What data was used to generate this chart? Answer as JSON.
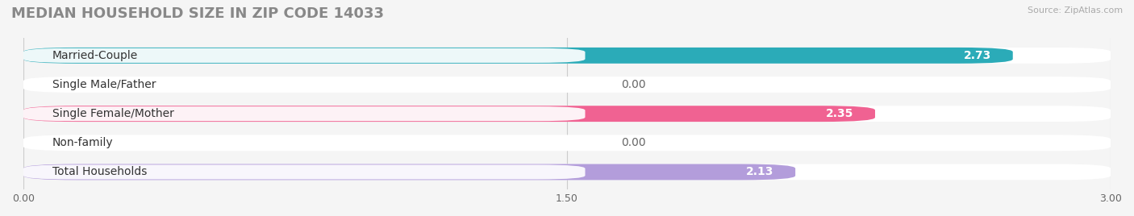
{
  "title": "MEDIAN HOUSEHOLD SIZE IN ZIP CODE 14033",
  "source": "Source: ZipAtlas.com",
  "categories": [
    "Married-Couple",
    "Single Male/Father",
    "Single Female/Mother",
    "Non-family",
    "Total Households"
  ],
  "values": [
    2.73,
    0.0,
    2.35,
    0.0,
    2.13
  ],
  "bar_colors": [
    "#2BABB8",
    "#9AAFD4",
    "#F06292",
    "#FFCC99",
    "#B39DDB"
  ],
  "xlim": [
    0,
    3.0
  ],
  "xticks": [
    0.0,
    1.5,
    3.0
  ],
  "xtick_labels": [
    "0.00",
    "1.50",
    "3.00"
  ],
  "background_color": "#f5f5f5",
  "bar_bg_color": "#e8e8e8",
  "title_fontsize": 13,
  "label_fontsize": 10,
  "value_fontsize": 10,
  "bar_height": 0.55,
  "figsize": [
    14.06,
    2.68
  ]
}
